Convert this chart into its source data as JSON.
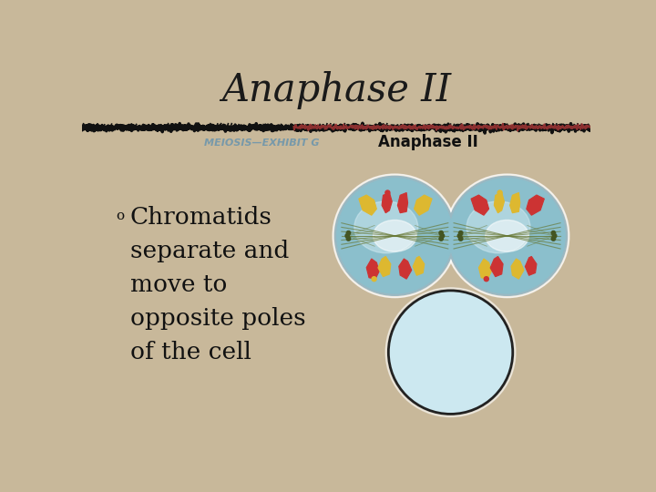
{
  "title": "Anaphase II",
  "title_fontsize": 30,
  "title_color": "#1a1a1a",
  "title_font": "serif",
  "bg_color": "#c8b89a",
  "subtitle_left": "MEIOSIS—EXHIBIT G",
  "subtitle_right": "Anaphase II",
  "subtitle_left_color": "#7799aa",
  "subtitle_right_color": "#111111",
  "bullet_text": "Chromatids\nseparate and\nmove to\nopposite poles\nof the cell",
  "bullet_color": "#111111",
  "bullet_fontsize": 19,
  "cell_color": "#8bbfcc",
  "cell_highlight": "#daeef5",
  "cell_border": "#888888",
  "bottom_cell_color": "#cce8f0",
  "yellow_color": "#ddb830",
  "red_color": "#cc3333",
  "spindle_color": "#667733",
  "stripe_dark": "#111111",
  "stripe_red": "#882222"
}
